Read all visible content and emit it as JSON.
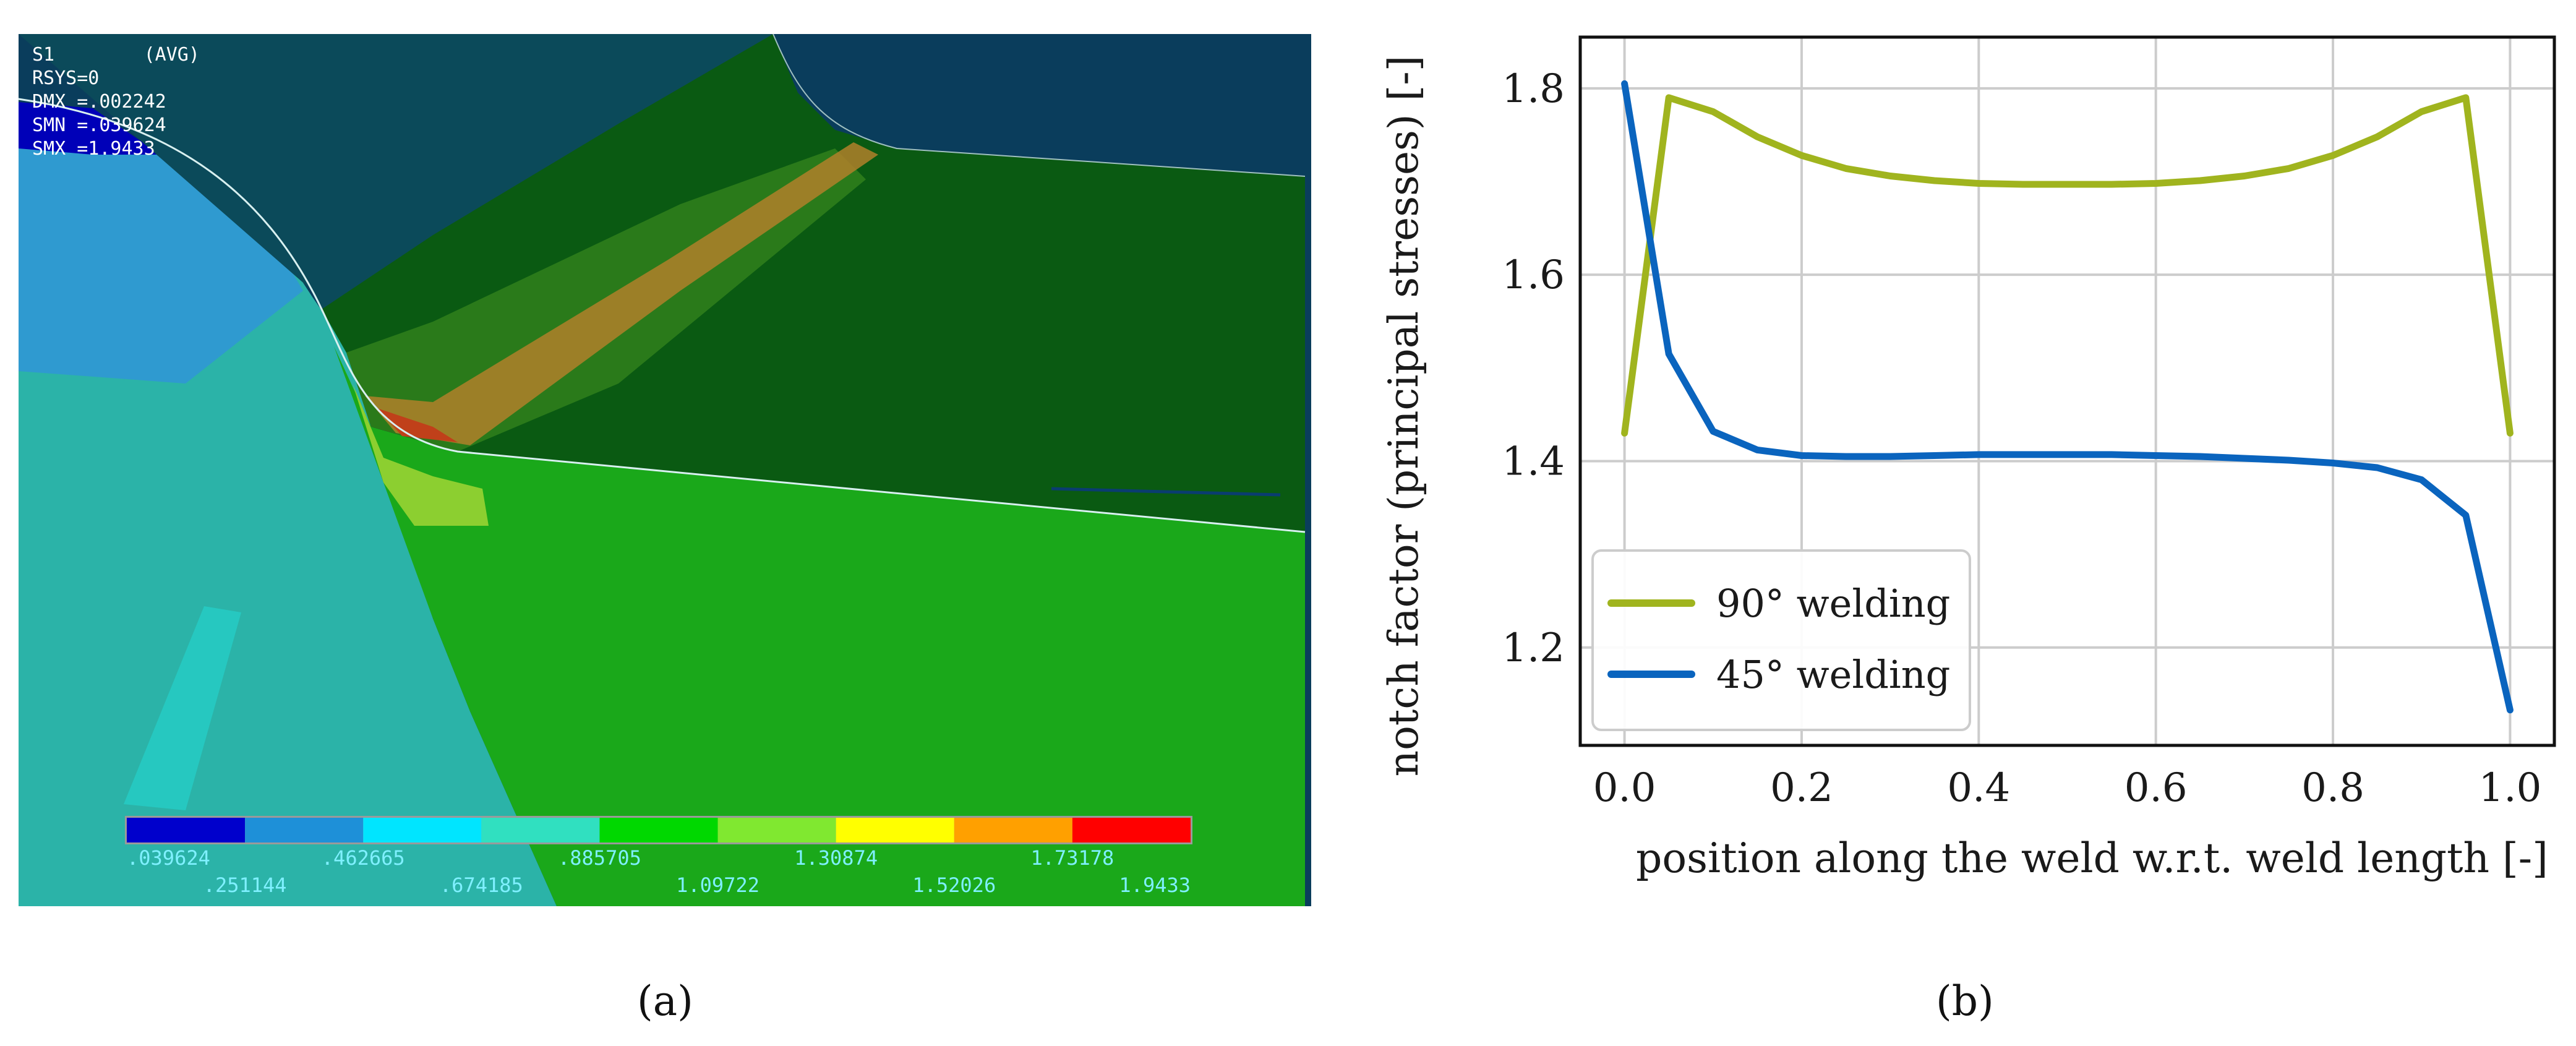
{
  "panel_a": {
    "caption": "(a)",
    "colors": {
      "background_dark": "#0a3d5c",
      "plate_green": "#1aa81a",
      "region_teal": "#2bb3a8",
      "region_blue": "#2f9ad0",
      "region_darkgreen": "#0a5a12",
      "hotspot_orange": "#d9a030",
      "hotspot_red": "#c0401a",
      "legend_text": "#7ff0ff",
      "header_text": "#ffffff"
    },
    "header_lines": [
      "S1        (AVG)",
      "RSYS=0",
      "DMX =.002242",
      "SMN =.039624",
      "SMX =1.9433"
    ],
    "legend": {
      "colors": [
        "#0000cc",
        "#1e90d8",
        "#00e5ff",
        "#30e0c0",
        "#00d800",
        "#80e830",
        "#ffff00",
        "#ffa000",
        "#ff0000"
      ],
      "labels_top": [
        ".039624",
        ".462665",
        ".885705",
        "1.30874",
        "1.73178"
      ],
      "labels_bottom": [
        ".251144",
        ".674185",
        "1.09722",
        "1.52026",
        "1.9433"
      ]
    }
  },
  "panel_b": {
    "caption": "(b)"
  },
  "chart_data": {
    "type": "line",
    "title": "",
    "xlabel": "position along the weld w.r.t. weld length [-]",
    "ylabel": "notch factor (principal stresses) [-]",
    "xlim": [
      -0.05,
      1.05
    ],
    "ylim": [
      1.095,
      1.855
    ],
    "xticks": [
      "0.0",
      "0.2",
      "0.4",
      "0.6",
      "0.8",
      "1.0"
    ],
    "xtick_values": [
      0.0,
      0.2,
      0.4,
      0.6,
      0.8,
      1.0
    ],
    "yticks": [
      "1.2",
      "1.4",
      "1.6",
      "1.8"
    ],
    "ytick_values": [
      1.2,
      1.4,
      1.6,
      1.8
    ],
    "grid": true,
    "legend_position": "lower-left",
    "series": [
      {
        "name": "90° welding",
        "color": "#a0b41e",
        "x": [
          0.0,
          0.05,
          0.1,
          0.15,
          0.2,
          0.25,
          0.3,
          0.35,
          0.4,
          0.45,
          0.5,
          0.55,
          0.6,
          0.65,
          0.7,
          0.75,
          0.8,
          0.85,
          0.9,
          0.95,
          1.0
        ],
        "y": [
          1.43,
          1.79,
          1.775,
          1.748,
          1.728,
          1.714,
          1.706,
          1.701,
          1.698,
          1.697,
          1.697,
          1.697,
          1.698,
          1.701,
          1.706,
          1.714,
          1.728,
          1.748,
          1.775,
          1.79,
          1.43
        ]
      },
      {
        "name": "45° welding",
        "color": "#0a64be",
        "x": [
          0.0,
          0.05,
          0.1,
          0.15,
          0.2,
          0.25,
          0.3,
          0.35,
          0.4,
          0.45,
          0.5,
          0.55,
          0.6,
          0.65,
          0.7,
          0.75,
          0.8,
          0.85,
          0.9,
          0.95,
          1.0
        ],
        "y": [
          1.805,
          1.515,
          1.432,
          1.412,
          1.406,
          1.405,
          1.405,
          1.406,
          1.407,
          1.407,
          1.407,
          1.407,
          1.406,
          1.405,
          1.403,
          1.401,
          1.398,
          1.393,
          1.38,
          1.342,
          1.133
        ]
      }
    ]
  }
}
